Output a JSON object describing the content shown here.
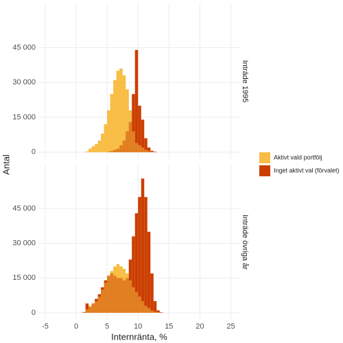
{
  "chart_data": {
    "type": "histogram",
    "x_label": "Internränta, %",
    "y_label": "Antal",
    "xlim": [
      -6,
      26.5
    ],
    "xticks": [
      -5,
      0,
      5,
      10,
      15,
      20,
      25
    ],
    "ylim": [
      -3000,
      64000
    ],
    "yticks": [
      0,
      {
        "value": 15000,
        "label": "15 000"
      },
      {
        "value": 30000,
        "label": "30 000"
      },
      {
        "value": 45000,
        "label": "45 000"
      }
    ],
    "grid": true,
    "legend": "right",
    "bins": [
      0.5,
      1,
      1.5,
      2,
      2.5,
      3,
      3.5,
      4,
      4.5,
      5,
      5.5,
      6,
      6.5,
      7,
      7.5,
      8,
      8.5,
      9,
      9.5,
      10,
      10.5,
      11,
      11.5,
      12,
      12.5,
      13,
      13.5,
      14,
      14.5,
      15
    ],
    "series": [
      {
        "name": "Aktivt vald portfölj",
        "color": "#f8bd44"
      },
      {
        "name": "Inget aktivt val (förvalet)",
        "color": "#cb3e00"
      }
    ],
    "facets": [
      {
        "label": "Inträde 1995",
        "series": [
          {
            "values": [
              0,
              0,
              300,
              1500,
              2500,
              3500,
              5000,
              8000,
              12000,
              18000,
              25000,
              31000,
              35000,
              36000,
              33000,
              27000,
              18000,
              9000,
              4000,
              3000,
              2000,
              1000,
              500,
              200,
              0,
              0,
              0,
              0,
              0
            ]
          },
          {
            "values": [
              0,
              0,
              0,
              0,
              0,
              0,
              0,
              0,
              0,
              200,
              500,
              1000,
              1500,
              3000,
              5000,
              9000,
              13000,
              25000,
              44000,
              20000,
              14000,
              6000,
              2000,
              600,
              200,
              0,
              0,
              0,
              0
            ]
          }
        ]
      },
      {
        "label": "Inträde övriga år",
        "series": [
          {
            "values": [
              0,
              200,
              1500,
              3000,
              4000,
              5000,
              7000,
              10000,
              13000,
              16000,
              18000,
              20000,
              21000,
              20000,
              19000,
              17000,
              14000,
              11000,
              9000,
              7000,
              5000,
              3000,
              2000,
              1000,
              500,
              200,
              0,
              0,
              0
            ]
          },
          {
            "values": [
              0,
              300,
              4000,
              2500,
              4000,
              6000,
              8000,
              11000,
              14000,
              16000,
              17000,
              16000,
              15000,
              15000,
              14000,
              15000,
              23000,
              33000,
              43000,
              50000,
              58000,
              50000,
              35000,
              17000,
              5000,
              1000,
              200,
              0,
              0
            ]
          }
        ]
      }
    ]
  }
}
